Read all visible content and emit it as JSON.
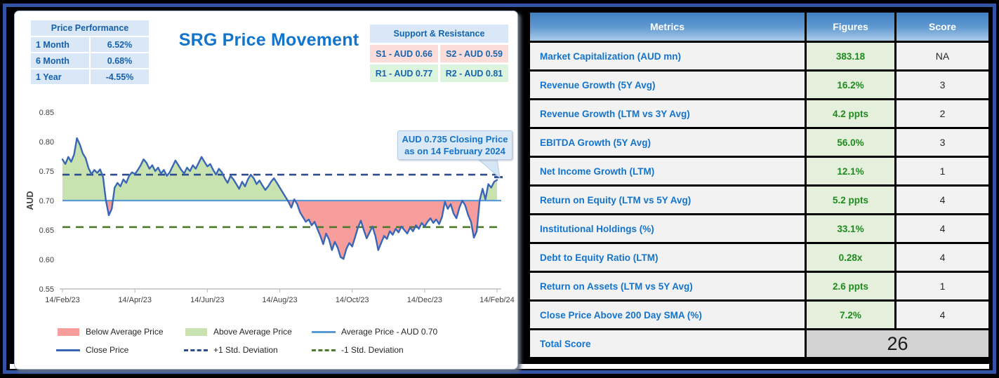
{
  "left_panel": {
    "title": "SRG Price Movement",
    "price_performance": {
      "header": "Price Performance",
      "rows": [
        [
          "1 Month",
          "6.52%"
        ],
        [
          "6 Month",
          "0.68%"
        ],
        [
          "1 Year",
          "-4.55%"
        ]
      ]
    },
    "support_resistance": {
      "header": "Support & Resistance",
      "cells": [
        {
          "label": "S1 - AUD 0.66",
          "type": "support"
        },
        {
          "label": "S2 - AUD 0.59",
          "type": "support"
        },
        {
          "label": "R1 - AUD 0.77",
          "type": "resistance"
        },
        {
          "label": "R2 - AUD 0.81",
          "type": "resistance"
        }
      ]
    },
    "callout": {
      "line1": "AUD 0.735 Closing Price",
      "line2": "as on 14 February 2024"
    }
  },
  "chart_data": {
    "type": "line",
    "title": "SRG Price Movement",
    "ylabel": "AUD",
    "xlabel": "",
    "ylim": [
      0.55,
      0.85
    ],
    "yticks": [
      0.55,
      0.6,
      0.65,
      0.7,
      0.75,
      0.8,
      0.85
    ],
    "x_tick_labels": [
      "14/Feb/23",
      "14/Apr/23",
      "14/Jun/23",
      "14/Aug/23",
      "14/Oct/23",
      "14/Dec/23",
      "14/Feb/24"
    ],
    "average_price": 0.7,
    "plus_one_std": 0.744,
    "minus_one_std": 0.655,
    "closing_price": 0.735,
    "closing_date": "14 February 2024",
    "grid": false,
    "legend_position": "bottom",
    "series": [
      {
        "name": "Close Price",
        "values": [
          0.77,
          0.762,
          0.774,
          0.766,
          0.778,
          0.806,
          0.795,
          0.78,
          0.772,
          0.755,
          0.745,
          0.752,
          0.747,
          0.753,
          0.74,
          0.7,
          0.675,
          0.686,
          0.722,
          0.73,
          0.724,
          0.736,
          0.73,
          0.742,
          0.748,
          0.745,
          0.752,
          0.76,
          0.77,
          0.764,
          0.754,
          0.76,
          0.75,
          0.756,
          0.746,
          0.752,
          0.742,
          0.748,
          0.758,
          0.768,
          0.76,
          0.752,
          0.746,
          0.756,
          0.75,
          0.76,
          0.754,
          0.764,
          0.774,
          0.766,
          0.758,
          0.762,
          0.752,
          0.744,
          0.754,
          0.748,
          0.738,
          0.73,
          0.742,
          0.736,
          0.728,
          0.72,
          0.732,
          0.724,
          0.736,
          0.744,
          0.738,
          0.728,
          0.734,
          0.726,
          0.718,
          0.724,
          0.732,
          0.738,
          0.73,
          0.722,
          0.714,
          0.706,
          0.698,
          0.688,
          0.702,
          0.694,
          0.68,
          0.672,
          0.664,
          0.668,
          0.658,
          0.664,
          0.652,
          0.64,
          0.626,
          0.644,
          0.634,
          0.616,
          0.63,
          0.62,
          0.604,
          0.601,
          0.618,
          0.628,
          0.622,
          0.638,
          0.654,
          0.666,
          0.65,
          0.636,
          0.646,
          0.656,
          0.64,
          0.616,
          0.628,
          0.64,
          0.635,
          0.648,
          0.642,
          0.652,
          0.646,
          0.656,
          0.65,
          0.644,
          0.654,
          0.648,
          0.658,
          0.652,
          0.662,
          0.656,
          0.664,
          0.67,
          0.662,
          0.668,
          0.66,
          0.672,
          0.698,
          0.686,
          0.694,
          0.678,
          0.67,
          0.688,
          0.7,
          0.692,
          0.676,
          0.664,
          0.637,
          0.648,
          0.7,
          0.72,
          0.702,
          0.728,
          0.722,
          0.732,
          0.735
        ]
      }
    ],
    "legend": [
      {
        "label": "Below Average Price",
        "swatch": "area",
        "color": "#f79d9b"
      },
      {
        "label": "Above Average Price",
        "swatch": "area",
        "color": "#c9e3b0"
      },
      {
        "label": "Average Price - AUD 0.70",
        "swatch": "line",
        "color": "#5b9bd5"
      },
      {
        "label": "Close Price",
        "swatch": "line",
        "color": "#3a67b5"
      },
      {
        "label": "+1 Std. Deviation",
        "swatch": "dash",
        "color": "#2d4d8f"
      },
      {
        "label": "-1 Std. Deviation",
        "swatch": "dash",
        "color": "#4e7a2b"
      }
    ]
  },
  "metrics_table": {
    "headers": [
      "Metrics",
      "Figures",
      "Score"
    ],
    "rows": [
      {
        "metric": "Market Capitalization (AUD mn)",
        "figure": "383.18",
        "score": "NA"
      },
      {
        "metric": "Revenue Growth (5Y Avg)",
        "figure": "16.2%",
        "score": "3"
      },
      {
        "metric": "Revenue Growth (LTM vs 3Y Avg)",
        "figure": "4.2 ppts",
        "score": "2"
      },
      {
        "metric": "EBITDA Growth (5Y Avg)",
        "figure": "56.0%",
        "score": "3"
      },
      {
        "metric": "Net Income Growth (LTM)",
        "figure": "12.1%",
        "score": "1"
      },
      {
        "metric": "Return on Equity (LTM vs 5Y Avg)",
        "figure": "5.2 ppts",
        "score": "4"
      },
      {
        "metric": "Institutional Holdings (%)",
        "figure": "33.1%",
        "score": "4"
      },
      {
        "metric": "Debt to Equity Ratio (LTM)",
        "figure": "0.28x",
        "score": "4"
      },
      {
        "metric": "Return on Assets (LTM vs 5Y Avg)",
        "figure": "2.6 ppts",
        "score": "1"
      },
      {
        "metric": "Close Price Above 200 Day SMA (%)",
        "figure": "7.2%",
        "score": "4"
      }
    ],
    "total_row": {
      "label": "Total Score",
      "value": "26"
    }
  },
  "colors": {
    "frame_border": "#3353a4",
    "title_blue": "#1274cd",
    "header_gradient_top": "#4180c3",
    "header_gradient_bottom": "#aacbe8",
    "metric_text": "#1274cd",
    "figure_text": "#1e8a1e",
    "figure_bg": "#e4f0db",
    "cell_bg": "#f2f2f2",
    "total_bg": "#d2d2d2",
    "support_bg": "#fbdcd9",
    "resistance_bg": "#dcf3de",
    "light_blue_bg": "#d9e7f6",
    "close_line": "#3a67b5",
    "average_line": "#5b9bd5",
    "plus_std_line": "#2d4d8f",
    "minus_std_line": "#4e7a2b",
    "above_fill": "#c9e3b0",
    "below_fill": "#f79d9b",
    "axis_text": "#404040"
  }
}
